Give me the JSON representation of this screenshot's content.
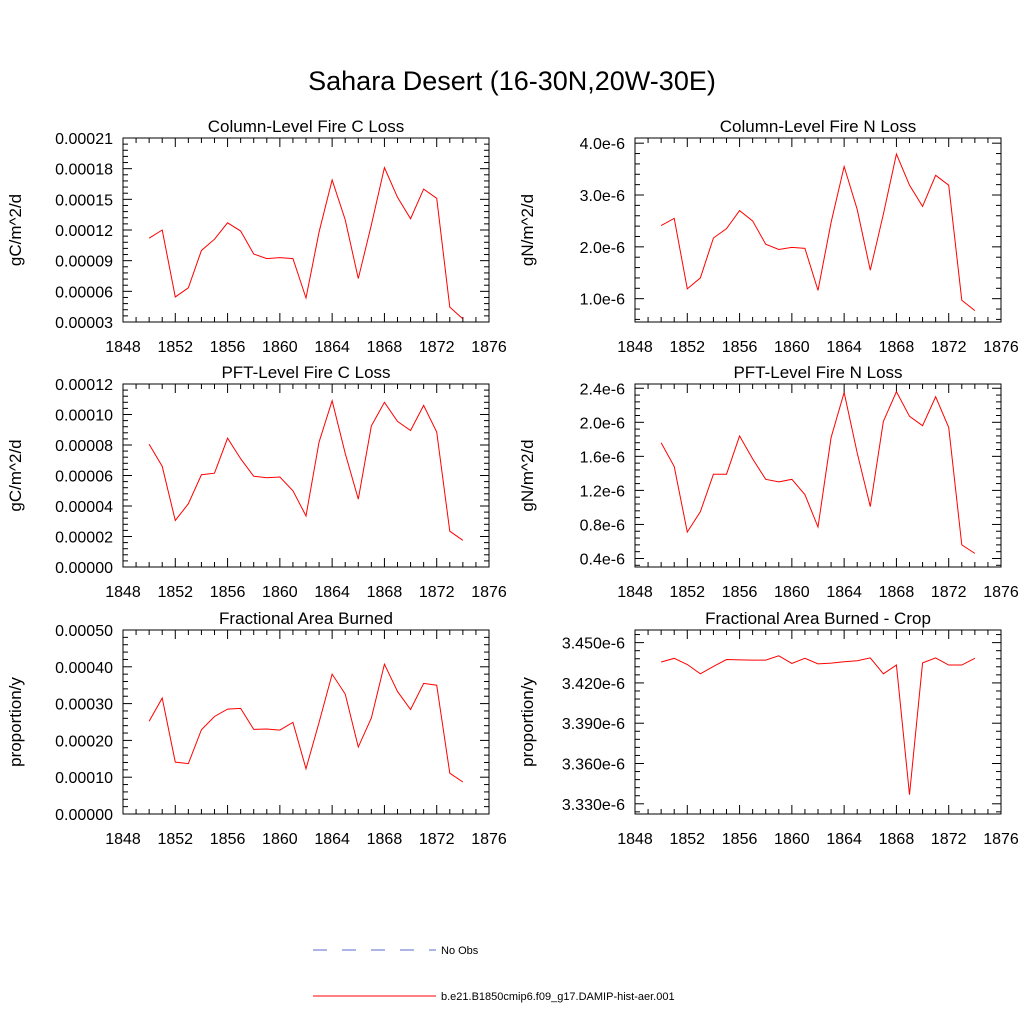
{
  "title": "Sahara Desert (16-30N,20W-30E)",
  "legend": {
    "items": [
      {
        "label": "No Obs",
        "color": "#5a6ad0",
        "dash": true
      },
      {
        "label": "b.e21.B1850cmip6.f09_g17.DAMIP-hist-aer.001",
        "color": "#ff0000",
        "dash": false
      }
    ]
  },
  "chart_data": [
    {
      "type": "line",
      "title": "Column-Level Fire C Loss",
      "ylabel": "gC/m^2/d",
      "xlim": [
        1848,
        1876
      ],
      "ylim": [
        3e-05,
        0.00021
      ],
      "xticks": [
        "1848",
        "1852",
        "1856",
        "1860",
        "1864",
        "1868",
        "1872",
        "1876"
      ],
      "yticks": [
        "0.00003",
        "0.00006",
        "0.00009",
        "0.00012",
        "0.00015",
        "0.00018",
        "0.00021"
      ],
      "color": "#ff0000",
      "x": [
        1850,
        1851,
        1852,
        1853,
        1854,
        1855,
        1856,
        1857,
        1858,
        1859,
        1860,
        1861,
        1862,
        1863,
        1864,
        1865,
        1866,
        1867,
        1868,
        1869,
        1870,
        1871,
        1872,
        1873,
        1874
      ],
      "values": [
        0.000112,
        0.00012,
        5.45e-05,
        6.35e-05,
        0.0001,
        0.000111,
        0.000127,
        0.000119,
        9.65e-05,
        9.2e-05,
        9.3e-05,
        9.2e-05,
        5.35e-05,
        0.000118,
        0.000169,
        0.00013,
        7.25e-05,
        0.000125,
        0.000181,
        0.000152,
        0.000131,
        0.00016,
        0.000151,
        4.45e-05,
        3.3e-05
      ]
    },
    {
      "type": "line",
      "title": "Column-Level Fire N Loss",
      "ylabel": "gN/m^2/d",
      "xlim": [
        1848,
        1876
      ],
      "ylim": [
        5.5e-07,
        4.1e-06
      ],
      "xticks": [
        "1848",
        "1852",
        "1856",
        "1860",
        "1864",
        "1868",
        "1872",
        "1876"
      ],
      "yticks": [
        "1.0e-6",
        "2.0e-6",
        "3.0e-6",
        "4.0e-6"
      ],
      "yticks_values": [
        1e-06,
        2e-06,
        3e-06,
        4e-06
      ],
      "color": "#ff0000",
      "x": [
        1850,
        1851,
        1852,
        1853,
        1854,
        1855,
        1856,
        1857,
        1858,
        1859,
        1860,
        1861,
        1862,
        1863,
        1864,
        1865,
        1866,
        1867,
        1868,
        1869,
        1870,
        1871,
        1872,
        1873,
        1874
      ],
      "values": [
        2.41e-06,
        2.55e-06,
        1.19e-06,
        1.4e-06,
        2.17e-06,
        2.35e-06,
        2.7e-06,
        2.5e-06,
        2.05e-06,
        1.95e-06,
        1.99e-06,
        1.97e-06,
        1.16e-06,
        2.47e-06,
        3.55e-06,
        2.72e-06,
        1.55e-06,
        2.63e-06,
        3.79e-06,
        3.19e-06,
        2.78e-06,
        3.38e-06,
        3.19e-06,
        9.7e-07,
        7.7e-07
      ]
    },
    {
      "type": "line",
      "title": "PFT-Level Fire C Loss",
      "ylabel": "gC/m^2/d",
      "xlim": [
        1848,
        1876
      ],
      "ylim": [
        0.0,
        0.00012
      ],
      "xticks": [
        "1848",
        "1852",
        "1856",
        "1860",
        "1864",
        "1868",
        "1872",
        "1876"
      ],
      "yticks": [
        "0.00000",
        "0.00002",
        "0.00004",
        "0.00006",
        "0.00008",
        "0.00010",
        "0.00012"
      ],
      "color": "#ff0000",
      "x": [
        1850,
        1851,
        1852,
        1853,
        1854,
        1855,
        1856,
        1857,
        1858,
        1859,
        1860,
        1861,
        1862,
        1863,
        1864,
        1865,
        1866,
        1867,
        1868,
        1869,
        1870,
        1871,
        1872,
        1873,
        1874
      ],
      "values": [
        8.05e-05,
        6.6e-05,
        3.05e-05,
        4.15e-05,
        6.05e-05,
        6.15e-05,
        8.45e-05,
        7.1e-05,
        5.95e-05,
        5.85e-05,
        5.9e-05,
        5e-05,
        3.35e-05,
        8.2e-05,
        0.000109,
        7.45e-05,
        4.45e-05,
        9.25e-05,
        0.000108,
        9.55e-05,
        8.95e-05,
        0.000106,
        8.85e-05,
        2.35e-05,
        1.75e-05
      ]
    },
    {
      "type": "line",
      "title": "PFT-Level Fire N Loss",
      "ylabel": "gN/m^2/d",
      "xlim": [
        1848,
        1876
      ],
      "ylim": [
        3e-07,
        2.45e-06
      ],
      "xticks": [
        "1848",
        "1852",
        "1856",
        "1860",
        "1864",
        "1868",
        "1872",
        "1876"
      ],
      "yticks": [
        "0.4e-6",
        "0.8e-6",
        "1.2e-6",
        "1.6e-6",
        "2.0e-6",
        "2.4e-6"
      ],
      "yticks_values": [
        4e-07,
        8e-07,
        1.2e-06,
        1.6e-06,
        2e-06,
        2.4e-06
      ],
      "color": "#ff0000",
      "x": [
        1850,
        1851,
        1852,
        1853,
        1854,
        1855,
        1856,
        1857,
        1858,
        1859,
        1860,
        1861,
        1862,
        1863,
        1864,
        1865,
        1866,
        1867,
        1868,
        1869,
        1870,
        1871,
        1872,
        1873,
        1874
      ],
      "values": [
        1.76e-06,
        1.48e-06,
        7.1e-07,
        9.5e-07,
        1.39e-06,
        1.39e-06,
        1.84e-06,
        1.57e-06,
        1.33e-06,
        1.3e-06,
        1.33e-06,
        1.15e-06,
        7.7e-07,
        1.82e-06,
        2.35e-06,
        1.64e-06,
        1.01e-06,
        2.01e-06,
        2.36e-06,
        2.07e-06,
        1.96e-06,
        2.3e-06,
        1.94e-06,
        5.6e-07,
        4.6e-07
      ]
    },
    {
      "type": "line",
      "title": "Fractional Area Burned",
      "ylabel": "proportion/y",
      "xlim": [
        1848,
        1876
      ],
      "ylim": [
        0.0,
        0.0005
      ],
      "xticks": [
        "1848",
        "1852",
        "1856",
        "1860",
        "1864",
        "1868",
        "1872",
        "1876"
      ],
      "yticks": [
        "0.00000",
        "0.00010",
        "0.00020",
        "0.00030",
        "0.00040",
        "0.00050"
      ],
      "color": "#ff0000",
      "x": [
        1850,
        1851,
        1852,
        1853,
        1854,
        1855,
        1856,
        1857,
        1858,
        1859,
        1860,
        1861,
        1862,
        1863,
        1864,
        1865,
        1866,
        1867,
        1868,
        1869,
        1870,
        1871,
        1872,
        1873,
        1874
      ],
      "values": [
        0.000252,
        0.000315,
        0.000141,
        0.000137,
        0.000229,
        0.000265,
        0.000285,
        0.000287,
        0.00023,
        0.000231,
        0.000228,
        0.000249,
        0.000123,
        0.000249,
        0.00038,
        0.000326,
        0.000182,
        0.000261,
        0.000407,
        0.000333,
        0.000284,
        0.000355,
        0.00035,
        0.000111,
        8.7e-05
      ]
    },
    {
      "type": "line",
      "title": "Fractional Area Burned - Crop",
      "ylabel": "proportion/y",
      "xlim": [
        1848,
        1876
      ],
      "ylim": [
        3.3224e-06,
        3.4594e-06
      ],
      "xticks": [
        "1848",
        "1852",
        "1856",
        "1860",
        "1864",
        "1868",
        "1872",
        "1876"
      ],
      "yticks": [
        "3.330e-6",
        "3.360e-6",
        "3.390e-6",
        "3.420e-6",
        "3.450e-6"
      ],
      "yticks_values": [
        3.33e-06,
        3.36e-06,
        3.39e-06,
        3.42e-06,
        3.45e-06
      ],
      "color": "#ff0000",
      "x": [
        1850,
        1851,
        1852,
        1853,
        1854,
        1855,
        1856,
        1857,
        1858,
        1859,
        1860,
        1861,
        1862,
        1863,
        1864,
        1865,
        1866,
        1867,
        1868,
        1869,
        1870,
        1871,
        1872,
        1873,
        1874
      ],
      "values": [
        3.4356e-06,
        3.4383e-06,
        3.4337e-06,
        3.4268e-06,
        3.4323e-06,
        3.4374e-06,
        3.4372e-06,
        3.437e-06,
        3.437e-06,
        3.4402e-06,
        3.4345e-06,
        3.4383e-06,
        3.4342e-06,
        3.4347e-06,
        3.4358e-06,
        3.4365e-06,
        3.4386e-06,
        3.4268e-06,
        3.4333e-06,
        3.3368e-06,
        3.4349e-06,
        3.4386e-06,
        3.4333e-06,
        3.4333e-06,
        3.4383e-06
      ]
    }
  ]
}
